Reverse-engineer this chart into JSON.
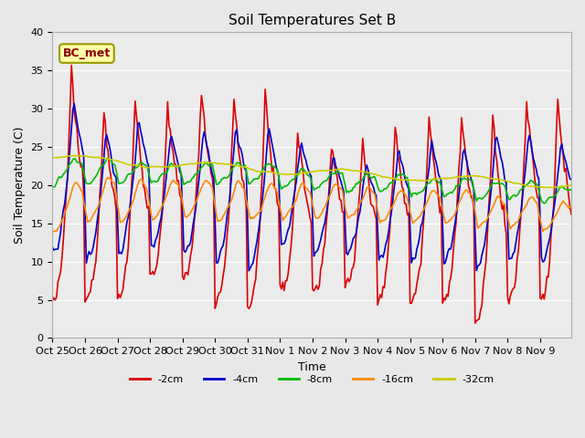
{
  "title": "Soil Temperatures Set B",
  "xlabel": "Time",
  "ylabel": "Soil Temperature (C)",
  "ylim": [
    0,
    40
  ],
  "tick_labels": [
    "Oct 25",
    "Oct 26",
    "Oct 27",
    "Oct 28",
    "Oct 29",
    "Oct 30",
    "Oct 31",
    "Nov 1",
    "Nov 2",
    "Nov 3",
    "Nov 4",
    "Nov 5",
    "Nov 6",
    "Nov 7",
    "Nov 8",
    "Nov 9"
  ],
  "series_colors": {
    "-2cm": "#DD0000",
    "-4cm": "#0000CC",
    "-8cm": "#00BB00",
    "-16cm": "#FF8800",
    "-32cm": "#CCCC00"
  },
  "legend_order": [
    "-2cm",
    "-4cm",
    "-8cm",
    "-16cm",
    "-32cm"
  ],
  "grid_color": "#FFFFFF",
  "bg_color": "#E8E8E8",
  "ax_bg": "#EBEBEB",
  "title_fontsize": 11,
  "axis_fontsize": 9,
  "tick_fontsize": 8,
  "annotation": "BC_met",
  "annotation_color": "#880000",
  "annotation_bg": "#FFFFAA",
  "annotation_border": "#999900"
}
